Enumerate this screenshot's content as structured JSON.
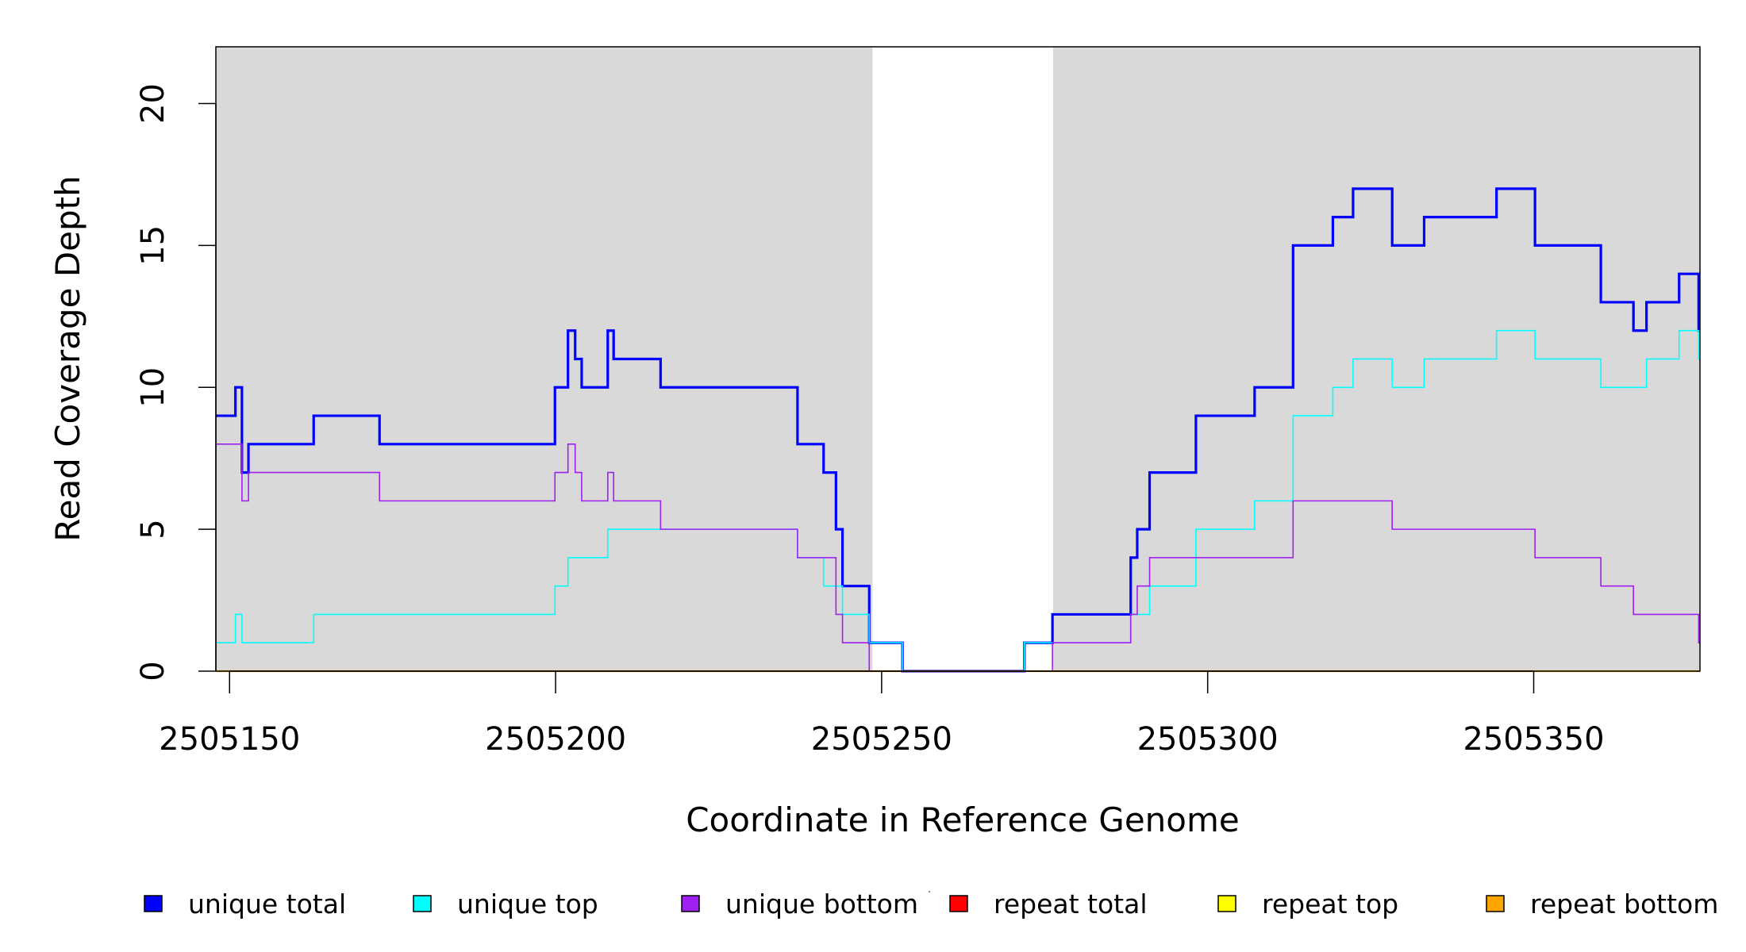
{
  "chart_data": {
    "type": "line",
    "step": true,
    "xlabel": "Coordinate in Reference Genome",
    "ylabel": "Read Coverage Depth",
    "xlim": [
      2505147.9,
      2505375.5
    ],
    "ylim": [
      0,
      22
    ],
    "x_ticks": [
      2505150,
      2505200,
      2505250,
      2505300,
      2505350
    ],
    "x_tick_labels": [
      "2505150",
      "2505200",
      "2505250",
      "2505300",
      "2505350"
    ],
    "y_ticks": [
      0,
      5,
      10,
      15,
      20
    ],
    "y_tick_labels": [
      "0",
      "5",
      "10",
      "15",
      "20"
    ],
    "shaded_regions": [
      [
        2505147.9,
        2505248.6
      ],
      [
        2505276.3,
        2505375.5
      ]
    ],
    "shade_color": "#d9d9d9",
    "legend_position": "bottom",
    "series": [
      {
        "name": "unique total",
        "color": "#0000ff",
        "steps": [
          [
            2505147.9,
            9
          ],
          [
            2505150.9,
            10
          ],
          [
            2505151.9,
            7
          ],
          [
            2505152.9,
            8
          ],
          [
            2505162.9,
            9
          ],
          [
            2505173,
            8
          ],
          [
            2505199.9,
            10
          ],
          [
            2505201.9,
            12
          ],
          [
            2505203,
            11
          ],
          [
            2505204,
            10
          ],
          [
            2505208,
            12
          ],
          [
            2505208.9,
            11
          ],
          [
            2505216.1,
            10
          ],
          [
            2505237.1,
            8
          ],
          [
            2505241.1,
            7
          ],
          [
            2505243,
            5
          ],
          [
            2505244,
            3
          ],
          [
            2505248.1,
            1
          ],
          [
            2505253.2,
            0
          ],
          [
            2505271.9,
            1
          ],
          [
            2505276.2,
            2
          ],
          [
            2505288.2,
            4
          ],
          [
            2505289.2,
            5
          ],
          [
            2505291.1,
            7
          ],
          [
            2505298.2,
            9
          ],
          [
            2505307.2,
            10
          ],
          [
            2505313.1,
            15
          ],
          [
            2505319.2,
            16
          ],
          [
            2505322.3,
            17
          ],
          [
            2505328.3,
            15
          ],
          [
            2505333.2,
            16
          ],
          [
            2505344.3,
            17
          ],
          [
            2505350.2,
            15
          ],
          [
            2505360.3,
            13
          ],
          [
            2505365.3,
            12
          ],
          [
            2505367.3,
            13
          ],
          [
            2505372.3,
            14
          ],
          [
            2505375.3,
            12
          ]
        ]
      },
      {
        "name": "unique top",
        "color": "#00ffff",
        "steps": [
          [
            2505147.9,
            1
          ],
          [
            2505150.9,
            2
          ],
          [
            2505151.9,
            1
          ],
          [
            2505162.9,
            2
          ],
          [
            2505199.9,
            3
          ],
          [
            2505201.9,
            4
          ],
          [
            2505208,
            5
          ],
          [
            2505237.1,
            4
          ],
          [
            2505241.1,
            3
          ],
          [
            2505244,
            2
          ],
          [
            2505248.1,
            1
          ],
          [
            2505253.2,
            0
          ],
          [
            2505271.9,
            1
          ],
          [
            2505288.2,
            2
          ],
          [
            2505291.1,
            3
          ],
          [
            2505298.2,
            5
          ],
          [
            2505307.2,
            6
          ],
          [
            2505313.1,
            9
          ],
          [
            2505319.2,
            10
          ],
          [
            2505322.3,
            11
          ],
          [
            2505328.3,
            10
          ],
          [
            2505333.2,
            11
          ],
          [
            2505344.3,
            12
          ],
          [
            2505350.2,
            11
          ],
          [
            2505360.3,
            10
          ],
          [
            2505367.3,
            11
          ],
          [
            2505372.3,
            12
          ],
          [
            2505375.3,
            11
          ]
        ]
      },
      {
        "name": "unique bottom",
        "color": "#a020f0",
        "steps": [
          [
            2505147.9,
            8
          ],
          [
            2505151.9,
            6
          ],
          [
            2505152.9,
            7
          ],
          [
            2505173,
            6
          ],
          [
            2505199.9,
            7
          ],
          [
            2505201.9,
            8
          ],
          [
            2505203,
            7
          ],
          [
            2505204,
            6
          ],
          [
            2505208,
            7
          ],
          [
            2505208.9,
            6
          ],
          [
            2505216.1,
            5
          ],
          [
            2505237.1,
            4
          ],
          [
            2505243,
            2
          ],
          [
            2505244,
            1
          ],
          [
            2505248.1,
            0
          ],
          [
            2505276.2,
            1
          ],
          [
            2505288.2,
            2
          ],
          [
            2505289.2,
            3
          ],
          [
            2505291.1,
            4
          ],
          [
            2505313.1,
            6
          ],
          [
            2505328.3,
            5
          ],
          [
            2505350.2,
            4
          ],
          [
            2505360.3,
            3
          ],
          [
            2505365.3,
            2
          ],
          [
            2505375.3,
            1
          ]
        ]
      },
      {
        "name": "repeat total",
        "color": "#ff0000",
        "steps": [
          [
            2505147.9,
            0
          ]
        ]
      },
      {
        "name": "repeat top",
        "color": "#ffff00",
        "steps": [
          [
            2505147.9,
            0
          ]
        ]
      },
      {
        "name": "repeat bottom",
        "color": "#ffa500",
        "steps": [
          [
            2505147.9,
            0
          ]
        ]
      }
    ]
  }
}
